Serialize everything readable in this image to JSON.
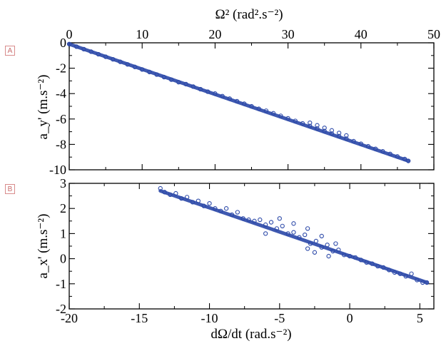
{
  "chart_data": [
    {
      "panel": "A",
      "type": "scatter",
      "x_axis_position": "top",
      "xlabel": "Ω²",
      "xlabel_units": "(rad².s⁻²)",
      "ylabel": "a_y' (m.s⁻²)",
      "xlim": [
        0,
        50
      ],
      "ylim": [
        -10,
        0
      ],
      "xticks": [
        0,
        10,
        20,
        30,
        40,
        50
      ],
      "yticks": [
        0,
        -2,
        -4,
        -6,
        -8,
        -10
      ],
      "series": [
        {
          "color": "#2b48a8",
          "marker": "open-circle",
          "trend": {
            "x": [
              0,
              46.5
            ],
            "y": [
              -0.1,
              -9.3
            ]
          },
          "points": [
            [
              0.0,
              -0.1
            ],
            [
              1.0,
              -0.3
            ],
            [
              2.0,
              -0.5
            ],
            [
              3.0,
              -0.7
            ],
            [
              4.0,
              -0.9
            ],
            [
              5.0,
              -1.1
            ],
            [
              6.0,
              -1.3
            ],
            [
              7.0,
              -1.5
            ],
            [
              8.0,
              -1.7
            ],
            [
              9.0,
              -1.9
            ],
            [
              10.0,
              -2.1
            ],
            [
              11.0,
              -2.3
            ],
            [
              12.0,
              -2.5
            ],
            [
              13.0,
              -2.7
            ],
            [
              14.0,
              -2.9
            ],
            [
              15.0,
              -3.1
            ],
            [
              16.0,
              -3.25
            ],
            [
              17.0,
              -3.45
            ],
            [
              18.0,
              -3.65
            ],
            [
              19.0,
              -3.85
            ],
            [
              20.0,
              -4.0
            ],
            [
              21.0,
              -4.2
            ],
            [
              22.0,
              -4.4
            ],
            [
              23.0,
              -4.6
            ],
            [
              24.0,
              -4.8
            ],
            [
              25.0,
              -5.0
            ],
            [
              26.0,
              -5.2
            ],
            [
              27.0,
              -5.35
            ],
            [
              28.0,
              -5.55
            ],
            [
              29.0,
              -5.75
            ],
            [
              30.0,
              -5.95
            ],
            [
              31.0,
              -6.15
            ],
            [
              32.0,
              -6.35
            ],
            [
              33.0,
              -6.55
            ],
            [
              34.0,
              -6.75
            ],
            [
              35.0,
              -6.95
            ],
            [
              36.0,
              -7.15
            ],
            [
              37.0,
              -7.35
            ],
            [
              38.0,
              -7.55
            ],
            [
              39.0,
              -7.75
            ],
            [
              40.0,
              -7.95
            ],
            [
              41.0,
              -8.15
            ],
            [
              42.0,
              -8.35
            ],
            [
              43.0,
              -8.55
            ],
            [
              44.0,
              -8.75
            ],
            [
              45.0,
              -8.95
            ],
            [
              46.0,
              -9.15
            ],
            [
              46.5,
              -9.3
            ],
            [
              33.0,
              -6.3
            ],
            [
              34.0,
              -6.5
            ],
            [
              35.0,
              -6.7
            ],
            [
              36.0,
              -6.9
            ],
            [
              37.0,
              -7.1
            ],
            [
              38.0,
              -7.3
            ]
          ]
        }
      ]
    },
    {
      "panel": "B",
      "type": "scatter",
      "x_axis_position": "bottom",
      "xlabel": "dΩ/dt",
      "xlabel_units": "(rad.s⁻²)",
      "ylabel": "a_x' (m.s⁻²)",
      "xlim": [
        -20,
        6
      ],
      "ylim": [
        -2,
        3
      ],
      "xticks": [
        -20,
        -15,
        -10,
        -5,
        0,
        5
      ],
      "yticks": [
        3,
        2,
        1,
        0,
        -1,
        -2
      ],
      "series": [
        {
          "color": "#2b48a8",
          "marker": "open-circle",
          "trend": {
            "x": [
              -13.5,
              5.5
            ],
            "y": [
              2.7,
              -0.95
            ]
          },
          "points": [
            [
              -13.5,
              2.8
            ],
            [
              -13.2,
              2.65
            ],
            [
              -12.8,
              2.55
            ],
            [
              -12.4,
              2.6
            ],
            [
              -12.0,
              2.4
            ],
            [
              -11.6,
              2.45
            ],
            [
              -11.2,
              2.25
            ],
            [
              -10.8,
              2.3
            ],
            [
              -10.4,
              2.1
            ],
            [
              -10.0,
              2.2
            ],
            [
              -9.6,
              2.0
            ],
            [
              -9.2,
              1.9
            ],
            [
              -8.8,
              2.0
            ],
            [
              -8.4,
              1.75
            ],
            [
              -8.0,
              1.85
            ],
            [
              -7.6,
              1.6
            ],
            [
              -7.2,
              1.55
            ],
            [
              -6.8,
              1.5
            ],
            [
              -6.4,
              1.55
            ],
            [
              -6.0,
              1.35
            ],
            [
              -5.6,
              1.45
            ],
            [
              -5.2,
              1.2
            ],
            [
              -4.8,
              1.3
            ],
            [
              -4.4,
              1.0
            ],
            [
              -4.0,
              1.05
            ],
            [
              -3.6,
              0.85
            ],
            [
              -3.2,
              0.95
            ],
            [
              -2.8,
              0.6
            ],
            [
              -2.4,
              0.7
            ],
            [
              -2.0,
              0.45
            ],
            [
              -1.6,
              0.55
            ],
            [
              -1.2,
              0.3
            ],
            [
              -0.8,
              0.35
            ],
            [
              -0.4,
              0.15
            ],
            [
              0.0,
              0.1
            ],
            [
              0.4,
              0.05
            ],
            [
              0.8,
              -0.05
            ],
            [
              1.2,
              -0.15
            ],
            [
              1.6,
              -0.2
            ],
            [
              2.0,
              -0.3
            ],
            [
              2.4,
              -0.35
            ],
            [
              2.8,
              -0.45
            ],
            [
              3.2,
              -0.55
            ],
            [
              3.6,
              -0.6
            ],
            [
              4.0,
              -0.7
            ],
            [
              4.4,
              -0.6
            ],
            [
              4.8,
              -0.85
            ],
            [
              5.2,
              -0.95
            ],
            [
              5.5,
              -0.95
            ],
            [
              -5.0,
              1.6
            ],
            [
              -4.0,
              1.4
            ],
            [
              -3.0,
              1.2
            ],
            [
              -2.0,
              0.9
            ],
            [
              -1.0,
              0.6
            ],
            [
              -6.0,
              1.0
            ],
            [
              -3.0,
              0.4
            ],
            [
              -2.5,
              0.25
            ],
            [
              -1.5,
              0.1
            ]
          ]
        }
      ]
    }
  ],
  "panel_tags": [
    "A",
    "B"
  ]
}
